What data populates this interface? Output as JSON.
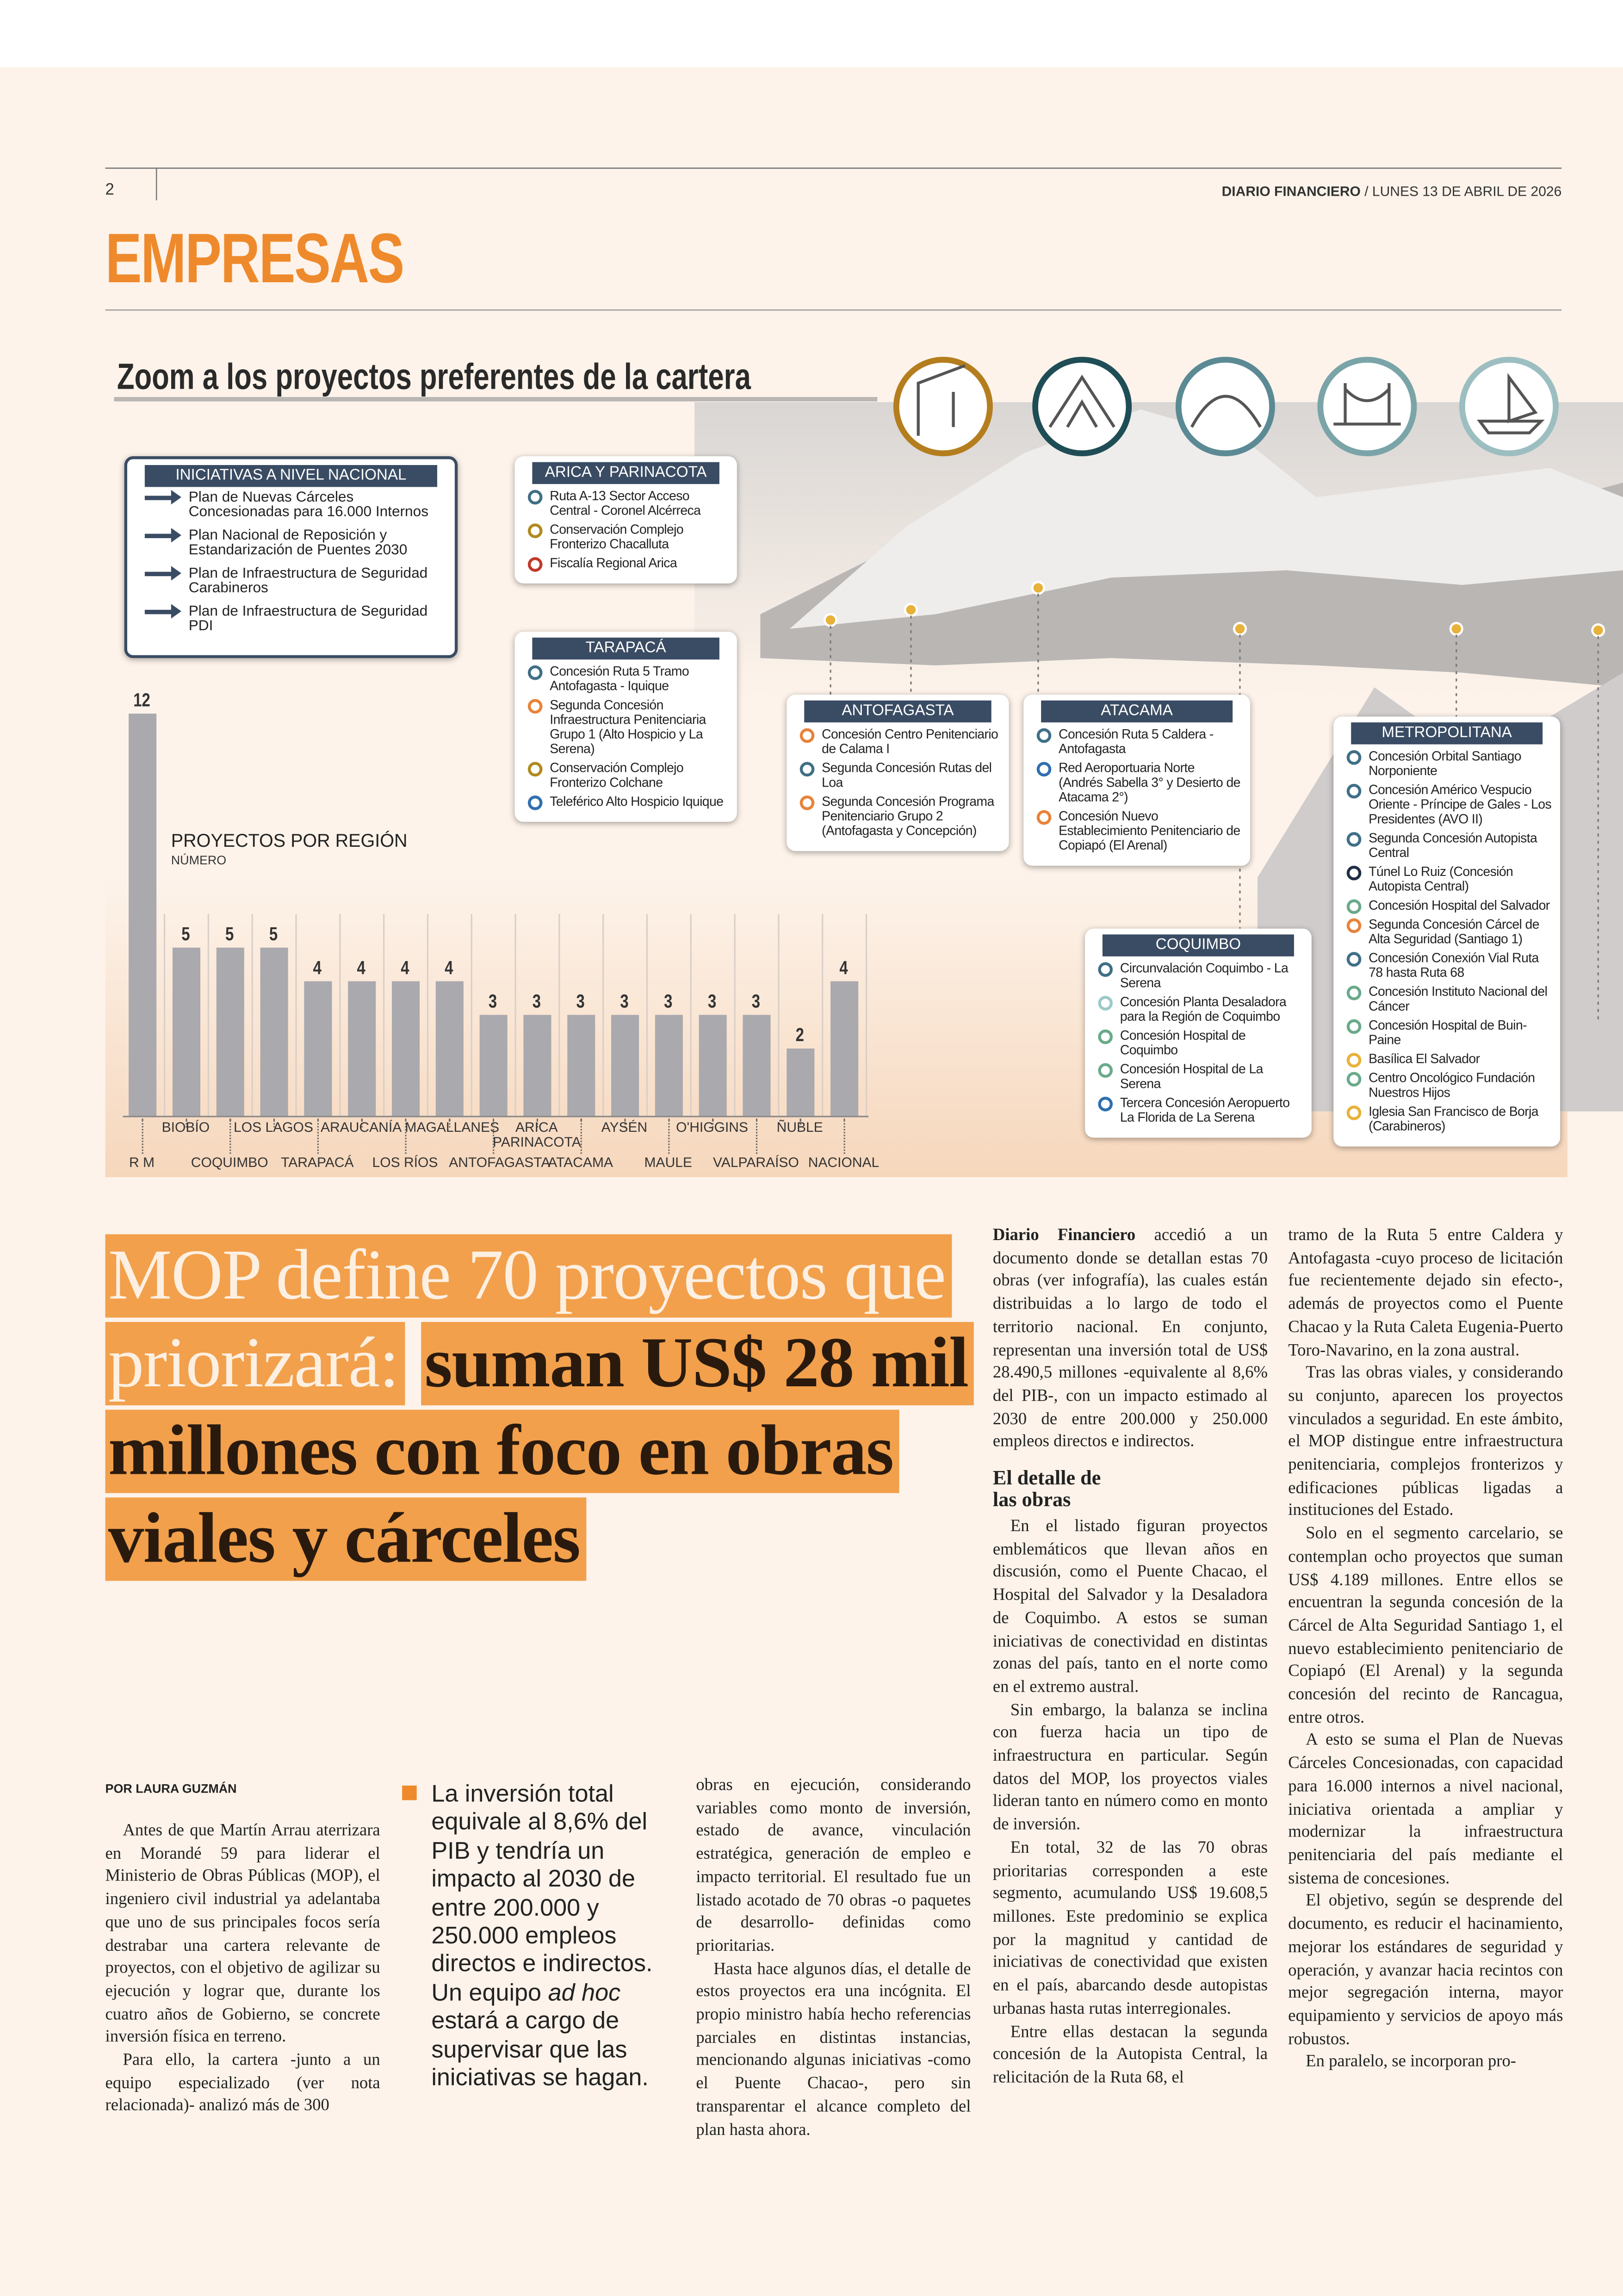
{
  "header": {
    "page_number": "2",
    "publication": "DIARIO FINANCIERO",
    "date": "/ LUNES 13 DE ABRIL DE 2026",
    "section": "EMPRESAS"
  },
  "infographic": {
    "title": "Zoom a los proyectos preferentes de la cartera",
    "national": {
      "title": "INICIATIVAS A NIVEL NACIONAL",
      "items": [
        "Plan de Nuevas Cárceles Concesionadas para 16.000 Internos",
        "Plan Nacional de Reposición y Estandarización de Puentes 2030",
        "Plan de Infraestructura de Seguridad Carabineros",
        "Plan de Infraestructura de Seguridad PDI"
      ]
    },
    "regions": [
      {
        "name": "ARICA Y PARINACOTA",
        "items": [
          {
            "text": "Ruta A-13 Sector Acceso Central - Coronel Alcérreca",
            "color": "#3f6f86"
          },
          {
            "text": "Conservación Complejo Fronterizo Chacalluta",
            "color": "#b08a1e"
          },
          {
            "text": "Fiscalía Regional Arica",
            "color": "#c0392b"
          }
        ]
      },
      {
        "name": "TARAPACÁ",
        "items": [
          {
            "text": "Concesión Ruta 5 Tramo Antofagasta - Iquique",
            "color": "#3f6f86"
          },
          {
            "text": "Segunda Concesión Infraestructura Penitenciaria Grupo 1 (Alto Hospicio y La Serena)",
            "color": "#e8833a"
          },
          {
            "text": "Conservación Complejo Fronterizo Colchane",
            "color": "#b08a1e"
          },
          {
            "text": "Teleférico Alto Hospicio Iquique",
            "color": "#2f6fb0"
          }
        ]
      },
      {
        "name": "ANTOFAGASTA",
        "items": [
          {
            "text": "Concesión Centro Penitenciario de Calama I",
            "color": "#e8833a"
          },
          {
            "text": "Segunda Concesión Rutas del Loa",
            "color": "#3f6f86"
          },
          {
            "text": "Segunda Concesión Programa Penitenciario Grupo 2 (Antofagasta y Concepción)",
            "color": "#e8833a"
          }
        ]
      },
      {
        "name": "ATACAMA",
        "items": [
          {
            "text": "Concesión Ruta 5 Caldera - Antofagasta",
            "color": "#3f6f86"
          },
          {
            "text": "Red Aeroportuaria Norte (Andrés Sabella 3° y Desierto de Atacama 2°)",
            "color": "#2f6fb0"
          },
          {
            "text": "Concesión Nuevo Establecimiento Penitenciario de Copiapó (El Arenal)",
            "color": "#e8833a"
          }
        ]
      },
      {
        "name": "COQUIMBO",
        "items": [
          {
            "text": "Circunvalación Coquimbo - La Serena",
            "color": "#3f6f86"
          },
          {
            "text": "Concesión Planta Desaladora para la Región de Coquimbo",
            "color": "#9cc9c9"
          },
          {
            "text": "Concesión Hospital de Coquimbo",
            "color": "#6aaa8a"
          },
          {
            "text": "Concesión Hospital de La Serena",
            "color": "#6aaa8a"
          },
          {
            "text": "Tercera Concesión Aeropuerto La Florida de La Serena",
            "color": "#2f6fb0"
          }
        ]
      },
      {
        "name": "METROPOLITANA",
        "items": [
          {
            "text": "Concesión Orbital Santiago Norponiente",
            "color": "#3f6f86"
          },
          {
            "text": "Concesión Américo Vespucio Oriente - Príncipe de Gales - Los Presidentes (AVO II)",
            "color": "#3f6f86"
          },
          {
            "text": "Segunda Concesión Autopista Central",
            "color": "#3f6f86"
          },
          {
            "text": "Túnel Lo Ruiz (Concesión Autopista Central)",
            "color": "#1f2f45"
          },
          {
            "text": "Concesión Hospital del Salvador",
            "color": "#6aaa8a"
          },
          {
            "text": "Segunda Concesión Cárcel de Alta Seguridad (Santiago 1)",
            "color": "#e8833a"
          },
          {
            "text": "Concesión Conexión Vial Ruta 78 hasta Ruta 68",
            "color": "#3f6f86"
          },
          {
            "text": "Concesión Instituto Nacional del Cáncer",
            "color": "#6aaa8a"
          },
          {
            "text": "Concesión Hospital de Buin-Paine",
            "color": "#6aaa8a"
          },
          {
            "text": "Basílica El Salvador",
            "color": "#e8b23a"
          },
          {
            "text": "Centro Oncológico Fundación Nuestros Hijos",
            "color": "#6aaa8a"
          },
          {
            "text": "Iglesia San Francisco de Borja (Carabineros)",
            "color": "#e8b23a"
          }
        ]
      }
    ],
    "chart": {
      "type": "bar",
      "title": "PROYECTOS POR REGIÓN",
      "subtitle": "NÚMERO",
      "color": "#a9a9ae",
      "categories": [
        "R M",
        "BIOBÍO",
        "COQUIMBO",
        "LOS LAGOS",
        "TARAPACÁ",
        "ARAUCANÍA",
        "LOS RÍOS",
        "MAGALLANES",
        "ANTOFAGASTA",
        "ARICA PARINACOTA",
        "ATACAMA",
        "AYSÉN",
        "MAULE",
        "O'HIGGINS",
        "VALPARAÍSO",
        "ÑUBLE",
        "NACIONAL"
      ],
      "values": [
        12,
        5,
        5,
        5,
        4,
        4,
        4,
        4,
        3,
        3,
        3,
        3,
        3,
        3,
        3,
        2,
        4
      ]
    }
  },
  "article": {
    "headline_light": "MOP define 70 proyectos que priorizará:",
    "headline_dark": "suman US$ 28 mil millones con foco en obras viales y cárceles",
    "byline": "POR LAURA GUZMÁN",
    "quote": {
      "before": "La inversión total equivale al 8,6% del PIB y tendría un impacto al 2030 de entre 200.000 y 250.000 empleos directos e indirectos. Un equipo",
      "italic": "ad hoc",
      "after": "estará a cargo de supervisar que las iniciativas se hagan."
    },
    "column1": [
      "Antes de que Martín Arrau aterrizara en Morandé 59 para liderar el Ministerio de Obras Públicas (MOP), el ingeniero civil industrial ya adelantaba que uno de sus principales focos sería destrabar una cartera relevante de proyectos, con el objetivo de agilizar su ejecución y lograr que, durante los cuatro años de Gobierno, se concrete inversión física en terreno.",
      "Para ello, la cartera -junto a un equipo especializado (ver nota relacionada)- analizó más de 300"
    ],
    "column2": [
      "obras en ejecución, considerando variables como monto de inversión, estado de avance, vinculación estratégica, generación de empleo e impacto territorial. El resultado fue un listado acotado de 70 obras -o paquetes de desarrollo- definidas como prioritarias.",
      "Hasta hace algunos días, el detalle de estos proyectos era una incógnita. El propio ministro había hecho referencias parciales en distintas instancias, mencionando algunas iniciativas -como el Puente Chacao-, pero sin transparentar el alcance completo del plan hasta ahora."
    ],
    "column3": {
      "lead": "Diario Financiero",
      "intro": "accedió a un documento donde se detallan estas 70 obras (ver infografía), las cuales están distribuidas a lo largo de todo el territorio nacional. En conjunto, representan una inversión total de US$ 28.490,5 millones -equivalente al 8,6% del PIB-, con un impacto estimado al 2030 de entre 200.000 y 250.000 empleos directos e indirectos.",
      "subhead": "El detalle de las obras",
      "paragraphs": [
        "En el listado figuran proyectos emblemáticos que llevan años en discusión, como el Puente Chacao, el Hospital del Salvador y la Desaladora de Coquimbo. A estos se suman iniciativas de conectividad en distintas zonas del país, tanto en el norte como en el extremo austral.",
        "Sin embargo, la balanza se inclina con fuerza hacia un tipo de infraestructura en particular. Según datos del MOP, los proyectos viales lideran tanto en número como en monto de inversión.",
        "En total, 32 de las 70 obras prioritarias corresponden a este segmento, acumulando US$ 19.608,5 millones. Este predominio se explica por la magnitud y cantidad de iniciativas de conectividad que existen en el país, abarcando desde autopistas urbanas hasta rutas interregionales.",
        "Entre ellas destacan la segunda concesión de la Autopista Central, la relicitación de la Ruta 68, el"
      ]
    },
    "column4": [
      "tramo de la Ruta 5 entre Caldera y Antofagasta -cuyo proceso de licitación fue recientemente dejado sin efecto-, además de proyectos como el Puente Chacao y la Ruta Caleta Eugenia-Puerto Toro-Navarino, en la zona austral.",
      "Tras las obras viales, y considerando su conjunto, aparecen los proyectos vinculados a seguridad. En este ámbito, el MOP distingue entre infraestructura penitenciaria, complejos fronterizos y edificaciones públicas ligadas a instituciones del Estado.",
      "Solo en el segmento carcelario, se contemplan ocho proyectos que suman US$ 4.189 millones. Entre ellos se encuentran la segunda concesión de la Cárcel de Alta Seguridad Santiago 1, el nuevo establecimiento penitenciario de Copiapó (El Arenal) y la segunda concesión del recinto de Rancagua, entre otros.",
      "A esto se suma el Plan de Nuevas Cárceles Concesionadas, con capacidad para 16.000 internos a nivel nacional, iniciativa orientada a ampliar y modernizar la infraestructura penitenciaria del país mediante el sistema de concesiones.",
      "El objetivo, según se desprende del documento, es reducir el hacinamiento, mejorar los estándares de seguridad y operación, y avanzar hacia recintos con mejor segregación interna, mayor equipamiento y servicios de apoyo más robustos.",
      "En paralelo, se incorporan pro-"
    ]
  }
}
